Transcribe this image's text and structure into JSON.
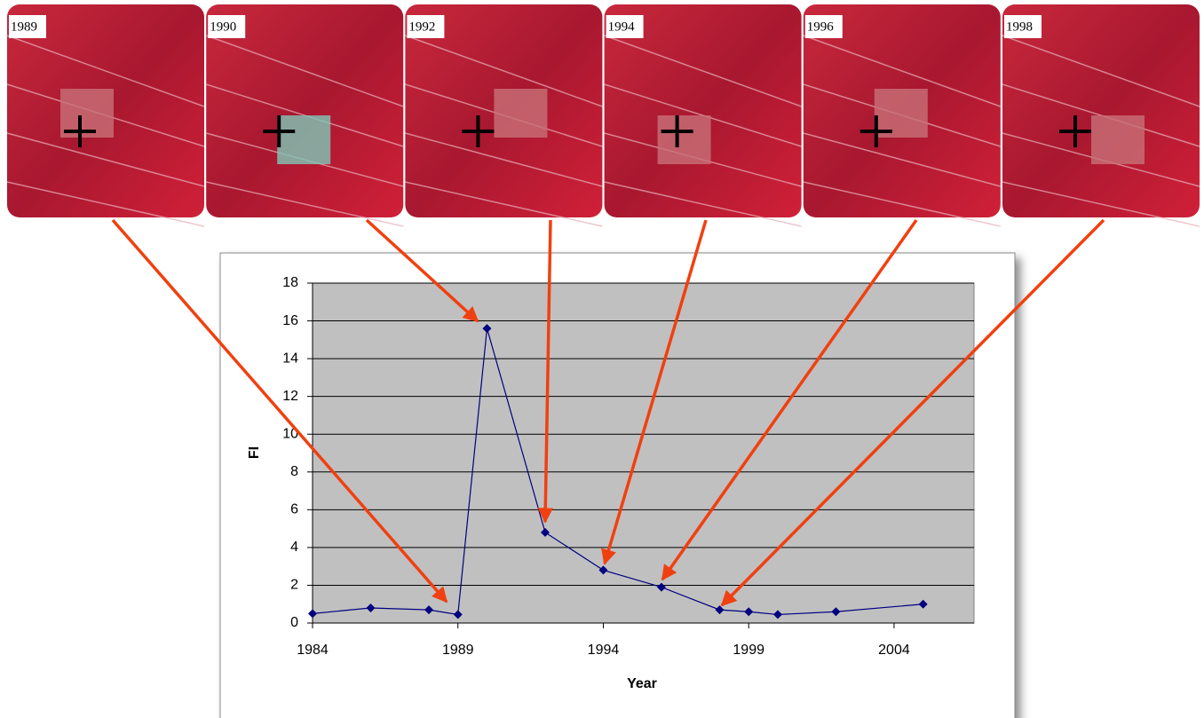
{
  "images": [
    {
      "label": "1989"
    },
    {
      "label": "1990"
    },
    {
      "label": "1992"
    },
    {
      "label": "1994"
    },
    {
      "label": "1996"
    },
    {
      "label": "1998"
    }
  ],
  "chart_data": {
    "type": "line",
    "x_label": "Year",
    "y_label": "FI",
    "x": [
      1984,
      1986,
      1988,
      1989,
      1990,
      1992,
      1994,
      1996,
      1998,
      1999,
      2000,
      2002,
      2005
    ],
    "series": [
      {
        "color": "#000080",
        "values": [
          0.5,
          0.8,
          0.7,
          0.45,
          15.6,
          4.8,
          2.8,
          1.9,
          0.7,
          0.6,
          0.45,
          0.6,
          1.0
        ]
      }
    ],
    "xlim": [
      1984,
      2006.75
    ],
    "xticks": [
      1984,
      1989,
      1994,
      1999,
      2004
    ],
    "ylim": [
      0,
      18
    ],
    "yticks": [
      0,
      2,
      4,
      6,
      8,
      10,
      12,
      14,
      16,
      18
    ],
    "grid": true,
    "plot_background": "#c0c0c0"
  }
}
